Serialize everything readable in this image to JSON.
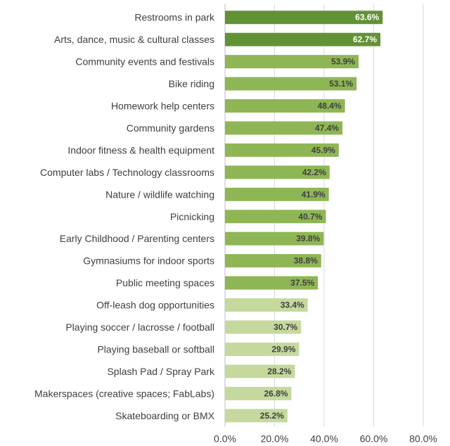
{
  "chart_data": {
    "type": "bar",
    "orientation": "horizontal",
    "title": "",
    "xlabel": "",
    "ylabel": "",
    "xlim": [
      0,
      80
    ],
    "x_ticks": [
      "0.0%",
      "20.0%",
      "40.0%",
      "60.0%",
      "80.0%"
    ],
    "grid": true,
    "legend": "none",
    "categories": [
      "Restrooms in park",
      "Arts, dance, music & cultural classes",
      "Community events and festivals",
      "Bike riding",
      "Homework help centers",
      "Community gardens",
      "Indoor fitness & health equipment",
      "Computer labs / Technology classrooms",
      "Nature / wildlife watching",
      "Picnicking",
      "Early Childhood / Parenting centers",
      "Gymnasiums for indoor sports",
      "Public meeting spaces",
      "Off-leash dog opportunities",
      "Playing soccer / lacrosse / football",
      "Playing baseball or softball",
      "Splash Pad / Spray Park",
      "Makerspaces (creative spaces; FabLabs)",
      "Skateboarding or BMX"
    ],
    "values": [
      63.6,
      62.7,
      53.9,
      53.1,
      48.4,
      47.4,
      45.9,
      42.2,
      41.9,
      40.7,
      39.8,
      38.8,
      37.5,
      33.4,
      30.7,
      29.9,
      28.2,
      26.8,
      25.2
    ],
    "value_labels": [
      "63.6%",
      "62.7%",
      "53.9%",
      "53.1%",
      "48.4%",
      "47.4%",
      "45.9%",
      "42.2%",
      "41.9%",
      "40.7%",
      "39.8%",
      "38.8%",
      "37.5%",
      "33.4%",
      "30.7%",
      "29.9%",
      "28.2%",
      "26.8%",
      "25.2%"
    ],
    "bar_colors": [
      "#629236",
      "#629236",
      "#8fb655",
      "#8fb655",
      "#8fb655",
      "#8fb655",
      "#8fb655",
      "#8fb655",
      "#8fb655",
      "#8fb655",
      "#8fb655",
      "#8fb655",
      "#8fb655",
      "#c5d99e",
      "#c5d99e",
      "#c5d99e",
      "#c5d99e",
      "#c5d99e",
      "#c5d99e"
    ],
    "label_colors": [
      "#ffffff",
      "#ffffff",
      "#404040",
      "#404040",
      "#404040",
      "#404040",
      "#404040",
      "#404040",
      "#404040",
      "#404040",
      "#404040",
      "#404040",
      "#404040",
      "#404040",
      "#404040",
      "#404040",
      "#404040",
      "#404040",
      "#404040"
    ]
  }
}
